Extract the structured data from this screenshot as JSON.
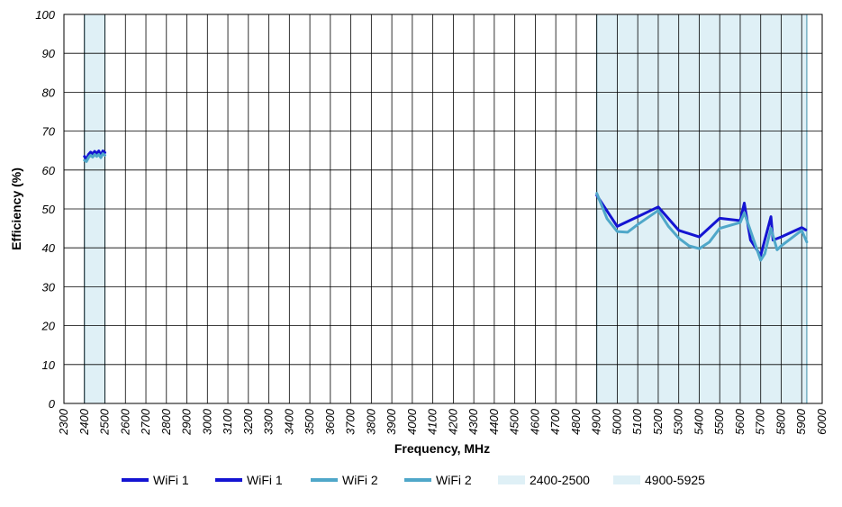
{
  "chart_data": {
    "type": "line",
    "xlabel": "Frequency, MHz",
    "ylabel": "Efficiency (%)",
    "xlim": [
      2300,
      6000
    ],
    "ylim": [
      0,
      100
    ],
    "x_ticks": [
      2300,
      2400,
      2500,
      2600,
      2700,
      2800,
      2900,
      3000,
      3100,
      3200,
      3300,
      3400,
      3500,
      3600,
      3700,
      3800,
      3900,
      4000,
      4100,
      4200,
      4300,
      4400,
      4500,
      4600,
      4700,
      4800,
      4900,
      5000,
      5100,
      5200,
      5300,
      5400,
      5500,
      5600,
      5700,
      5800,
      5900,
      6000
    ],
    "y_ticks": [
      0,
      10,
      20,
      30,
      40,
      50,
      60,
      70,
      80,
      90,
      100
    ],
    "grid": true,
    "bands": [
      {
        "name": "2400-2500",
        "start": 2400,
        "end": 2500,
        "color": "#dff0f6"
      },
      {
        "name": "4900-5925",
        "start": 4900,
        "end": 5925,
        "color": "#dff0f6"
      }
    ],
    "series": [
      {
        "name": "WiFi 1",
        "color": "#1414d2",
        "x": [
          2400,
          2410,
          2420,
          2430,
          2440,
          2450,
          2460,
          2470,
          2480,
          2490,
          2500
        ],
        "y": [
          63.5,
          62.8,
          64.0,
          64.6,
          64.2,
          64.8,
          64.3,
          64.9,
          63.8,
          64.9,
          64.5
        ]
      },
      {
        "name": "WiFi 1",
        "color": "#1414d2",
        "x": [
          4900,
          5000,
          5100,
          5200,
          5300,
          5400,
          5500,
          5600,
          5620,
          5650,
          5700,
          5750,
          5760,
          5800,
          5900,
          5920
        ],
        "y": [
          53.5,
          45.5,
          48.0,
          50.5,
          44.5,
          42.8,
          47.6,
          47.0,
          51.5,
          42.0,
          38.0,
          48.0,
          42.0,
          42.8,
          45.2,
          44.6
        ]
      },
      {
        "name": "WiFi 2",
        "color": "#4fa7c9",
        "x": [
          2400,
          2410,
          2420,
          2430,
          2440,
          2450,
          2460,
          2470,
          2480,
          2490,
          2500
        ],
        "y": [
          62.5,
          62.2,
          63.2,
          63.8,
          63.3,
          64.0,
          63.5,
          64.0,
          63.2,
          64.2,
          63.8
        ]
      },
      {
        "name": "WiFi 2",
        "color": "#4fa7c9",
        "x": [
          4900,
          4950,
          5000,
          5050,
          5100,
          5200,
          5250,
          5300,
          5350,
          5400,
          5450,
          5500,
          5600,
          5620,
          5700,
          5720,
          5750,
          5780,
          5800,
          5850,
          5900,
          5925
        ],
        "y": [
          54.0,
          47.5,
          44.2,
          44.0,
          46.0,
          49.6,
          45.5,
          42.5,
          40.5,
          39.8,
          41.5,
          45.0,
          46.5,
          49.0,
          36.8,
          38.5,
          45.0,
          39.5,
          40.5,
          42.5,
          44.5,
          41.5
        ]
      }
    ],
    "legend": {
      "placement": "bottom",
      "entries": [
        {
          "label": "WiFi 1",
          "color": "#1414d2",
          "kind": "line"
        },
        {
          "label": "WiFi 1",
          "color": "#1414d2",
          "kind": "line"
        },
        {
          "label": "WiFi 2",
          "color": "#4fa7c9",
          "kind": "line"
        },
        {
          "label": "WiFi 2",
          "color": "#4fa7c9",
          "kind": "line"
        },
        {
          "label": "2400-2500",
          "color": "#dff0f6",
          "kind": "band"
        },
        {
          "label": "4900-5925",
          "color": "#dff0f6",
          "kind": "band"
        }
      ]
    }
  }
}
